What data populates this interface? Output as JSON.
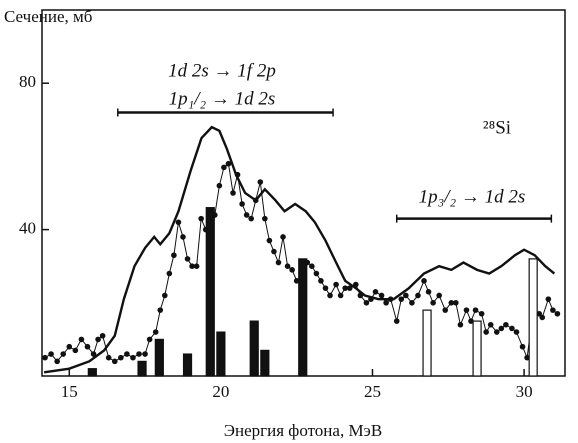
{
  "chart_data": {
    "type": "line",
    "y_label": "Сечение, мб",
    "x_label": "Энергия фотона, МэВ",
    "annotations": [
      "1d 2s → 1f 2p",
      "1p₁/₂ → 1d 2s",
      "²⁸Si",
      "1p₃/₂ → 1d 2s"
    ],
    "ranges": [
      {
        "x": [
          16.6,
          23.7
        ],
        "y": 72
      },
      {
        "x": [
          25.8,
          30.9
        ],
        "y": 43
      }
    ],
    "xlim": [
      14.1,
      31.35
    ],
    "ylim": [
      0,
      100
    ],
    "xticks": [
      15,
      20,
      25,
      30
    ],
    "yticks": [
      40,
      80
    ],
    "series": [
      {
        "style": "curve",
        "color": "#111111",
        "x": [
          14.17,
          15.0,
          15.66,
          16.15,
          16.5,
          16.8,
          17.15,
          17.5,
          17.8,
          18.0,
          18.3,
          18.6,
          19.0,
          19.36,
          19.7,
          19.95,
          20.2,
          20.5,
          20.8,
          21.15,
          21.45,
          21.8,
          22.1,
          22.45,
          22.8,
          23.1,
          23.45,
          23.8,
          24.1,
          24.45,
          24.75,
          25.2,
          25.7,
          26.2,
          26.7,
          27.2,
          27.6,
          28.0,
          28.45,
          28.85,
          29.25,
          29.7,
          30.0,
          30.35,
          30.7,
          31.0
        ],
        "values": [
          1,
          2,
          4,
          7,
          11,
          21,
          30,
          35,
          38,
          36,
          39,
          45,
          56,
          65,
          68,
          67,
          62,
          55,
          50,
          48,
          51,
          48,
          45,
          47,
          45,
          42,
          37,
          31,
          26,
          24,
          22,
          21,
          21,
          24,
          28,
          30,
          29,
          31,
          29,
          28,
          30,
          33,
          34.5,
          33,
          30,
          28
        ]
      },
      {
        "style": "dots",
        "color": "#111111",
        "x": [
          14.2,
          14.4,
          14.6,
          14.8,
          15.0,
          15.2,
          15.4,
          15.6,
          15.8,
          15.95,
          16.1,
          16.3,
          16.5,
          16.7,
          16.9,
          17.1,
          17.3,
          17.5,
          17.65,
          17.85,
          18.0,
          18.15,
          18.3,
          18.45,
          18.6,
          18.75,
          18.9,
          19.05,
          19.2,
          19.35,
          19.5,
          19.65,
          19.8,
          19.95,
          20.1,
          20.25,
          20.4,
          20.55,
          20.7,
          20.85,
          21.0,
          21.15,
          21.3,
          21.45,
          21.6,
          21.75,
          21.9,
          22.05,
          22.2,
          22.35,
          22.5,
          22.7,
          22.85,
          23.0,
          23.15,
          23.3,
          23.45,
          23.6,
          23.8,
          23.95,
          24.1,
          24.25,
          24.45,
          24.6,
          24.8,
          24.95,
          25.1,
          25.3,
          25.45,
          25.6,
          25.8,
          25.95,
          26.1,
          26.3,
          26.5,
          26.7,
          26.85,
          27.0,
          27.2,
          27.4,
          27.6,
          27.75,
          27.9,
          28.1,
          28.25,
          28.4,
          28.6,
          28.75,
          28.9,
          29.1,
          29.25,
          29.4,
          29.6,
          29.75,
          29.95,
          30.1,
          30.3,
          30.5,
          30.6,
          30.8,
          30.95,
          31.1
        ],
        "values": [
          5,
          6,
          4,
          6,
          8,
          7,
          10,
          8,
          6,
          10,
          11,
          5,
          4,
          5,
          6,
          5,
          6,
          6,
          10,
          12,
          18,
          22,
          28,
          33,
          42,
          38,
          32,
          30,
          30,
          43,
          40,
          37,
          44,
          52,
          57,
          58,
          50,
          55,
          47,
          44,
          43,
          48,
          53,
          43,
          37,
          34,
          31,
          38,
          30,
          29,
          26,
          27,
          31,
          30,
          28,
          26,
          24,
          22,
          25,
          22,
          24,
          24,
          25,
          22,
          20,
          21,
          23,
          22,
          20,
          21,
          15,
          21,
          22,
          20,
          22,
          26,
          23,
          20,
          22,
          18,
          20,
          20,
          14,
          18,
          15,
          18,
          17,
          12,
          14,
          12,
          13,
          14,
          13,
          12,
          8,
          5,
          18,
          17,
          16,
          21,
          18,
          17
        ]
      },
      {
        "style": "bars",
        "color": "#111111",
        "x": [
          15.76,
          17.4,
          17.97,
          18.9,
          19.65,
          20.0,
          21.1,
          21.45,
          22.7
        ],
        "values": [
          2,
          4,
          10,
          6,
          46,
          12,
          15,
          7,
          32
        ]
      },
      {
        "style": "bars",
        "color": "#ffffff",
        "x": [
          26.8,
          28.45,
          30.3
        ],
        "values": [
          18,
          15,
          32
        ]
      }
    ]
  }
}
